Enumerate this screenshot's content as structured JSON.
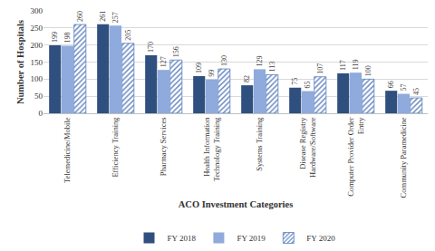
{
  "chart_data": {
    "type": "bar",
    "x_label": "ACO Investment Categories",
    "y_label": "Number of Hospitals",
    "categories": [
      "Telemedicine/Mobile",
      "Efficiency Training",
      "Pharmacy Services",
      "Health Information Technology Training",
      "Systems Training",
      "Disease Registry Hardware/Software",
      "Computer Provider Order Entry",
      "Community Paramedicine"
    ],
    "series": [
      {
        "name": "FY 2018",
        "color": "#2f4f7f",
        "values": [
          199,
          261,
          170,
          109,
          82,
          75,
          117,
          66
        ]
      },
      {
        "name": "FY 2019",
        "color": "#8faadc",
        "values": [
          198,
          257,
          127,
          99,
          129,
          65,
          119,
          57
        ]
      },
      {
        "name": "FY 2020",
        "color": "#5b7fc0",
        "marker": "hatch",
        "values": [
          260,
          205,
          156,
          130,
          113,
          107,
          100,
          45
        ]
      }
    ],
    "ylim": [
      0,
      300
    ],
    "yticks": [
      0,
      50,
      100,
      150,
      200,
      250,
      300
    ],
    "grid": true,
    "data_labels": true,
    "legend": "bottom"
  }
}
